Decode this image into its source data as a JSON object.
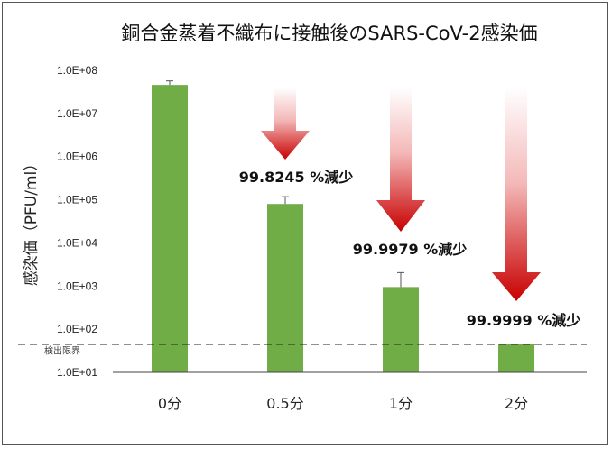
{
  "chart_data": {
    "type": "bar",
    "title": "銅合金蒸着不織布に接触後のSARS-CoV-2感染価",
    "ylabel": "感染価（PFU/ml）",
    "xlabel": "",
    "yscale": "log",
    "ylim": [
      10,
      100000000
    ],
    "yticks": [
      "1.0E+01",
      "1.0E+02",
      "1.0E+03",
      "1.0E+04",
      "1.0E+05",
      "1.0E+06",
      "1.0E+07",
      "1.0E+08"
    ],
    "categories": [
      "0分",
      "0.5分",
      "1分",
      "2分"
    ],
    "values": [
      46000000,
      80000,
      950,
      45
    ],
    "error_upper": [
      57000000,
      118000,
      2050,
      null
    ],
    "bar_color": "#70ad47",
    "detection_limit": {
      "value": 45,
      "label": "検出限界",
      "style": "dashed"
    },
    "annotations": [
      {
        "category": "0.5分",
        "text": "99.8245 %減少"
      },
      {
        "category": "1分",
        "text": "99.9979 %減少"
      },
      {
        "category": "2分",
        "text": "99.9999 %減少"
      }
    ],
    "arrow_color": "#cc0000"
  }
}
